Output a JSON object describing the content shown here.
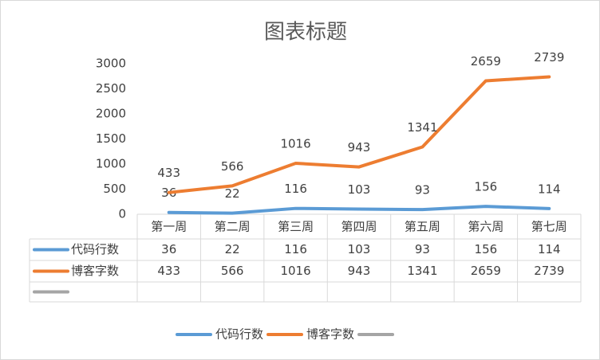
{
  "chart_data": {
    "type": "line",
    "title": "图表标题",
    "categories": [
      "第一周",
      "第二周",
      "第三周",
      "第四周",
      "第五周",
      "第六周",
      "第七周"
    ],
    "series": [
      {
        "name": "代码行数",
        "color": "#5b9bd5",
        "values": [
          36,
          22,
          116,
          103,
          93,
          156,
          114
        ]
      },
      {
        "name": "博客字数",
        "color": "#ed7d31",
        "values": [
          433,
          566,
          1016,
          943,
          1341,
          2659,
          2739
        ]
      },
      {
        "color": "#a5a5a5",
        "values": [
          null,
          null,
          null,
          null,
          null,
          null,
          null
        ]
      }
    ],
    "ylim": [
      0,
      3000
    ],
    "yticks": [
      0,
      500,
      1000,
      1500,
      2000,
      2500,
      3000
    ],
    "grid": false,
    "data_table": true,
    "legend": "bottom"
  }
}
